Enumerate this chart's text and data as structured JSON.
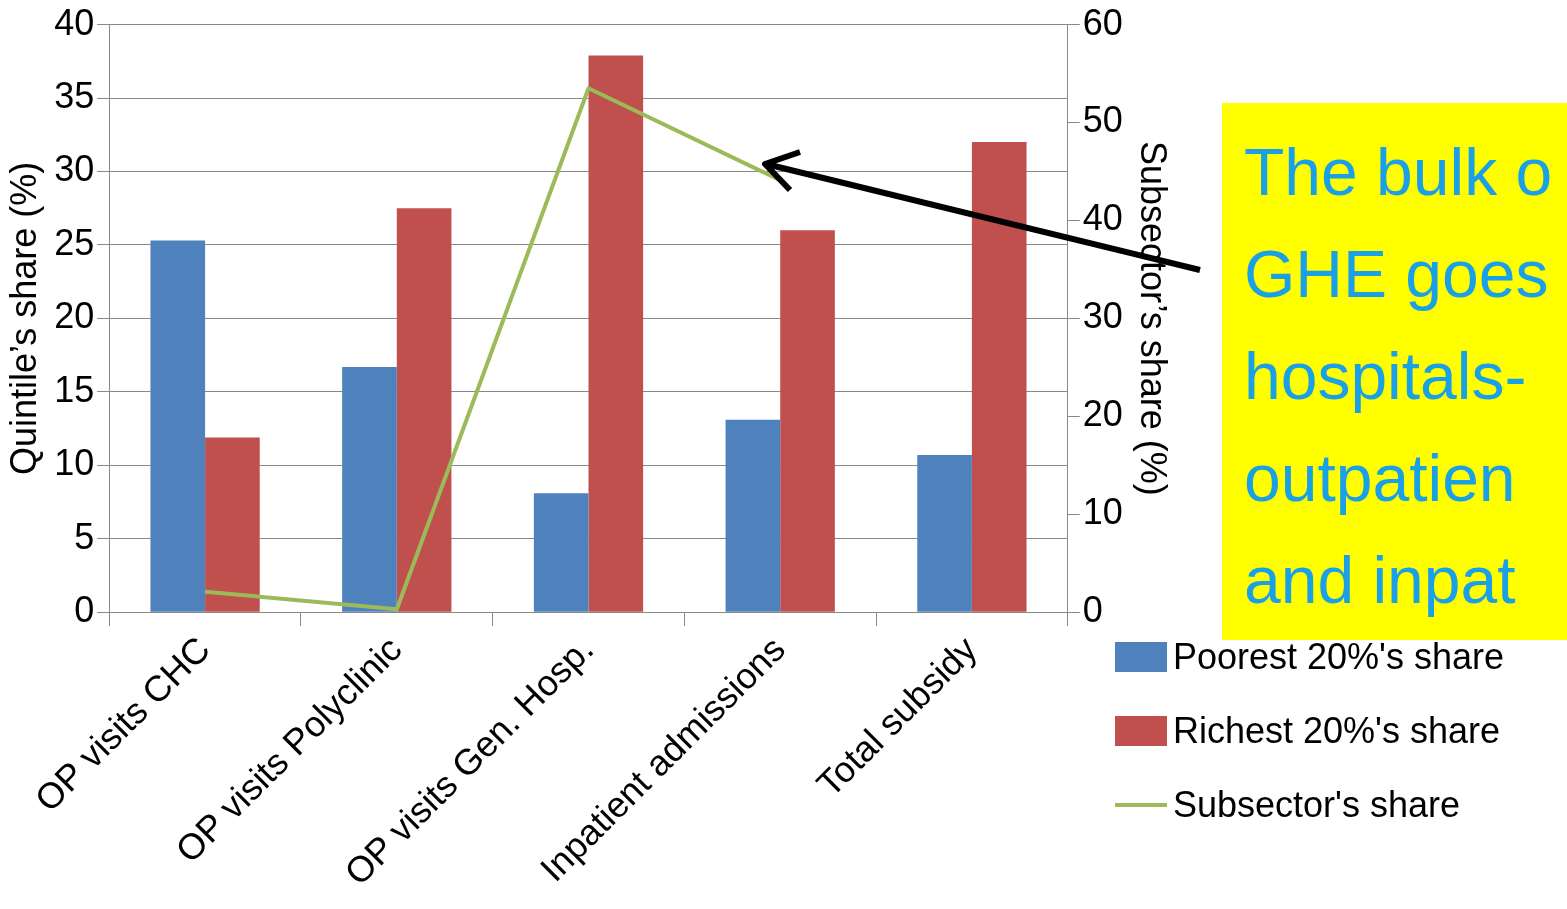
{
  "chart_data": {
    "type": "bar",
    "categories": [
      "OP visits CHC",
      "OP visits Polyclinic",
      "OP visits Gen. Hosp.",
      "Inpatient admissions",
      "Total subsidy"
    ],
    "series": [
      {
        "name": "Poorest 20%'s share",
        "color": "#4f81bd",
        "values": [
          25.3,
          16.7,
          8.1,
          13.1,
          10.7
        ]
      },
      {
        "name": "Richest 20%'s share",
        "color": "#c0504d",
        "values": [
          11.9,
          27.5,
          37.9,
          26.0,
          32.0
        ]
      },
      {
        "name": "Subsector's share",
        "type": "line",
        "axis": "y2",
        "color": "#9bbb59",
        "values": [
          2.1,
          0.3,
          53.5,
          44.1,
          null
        ]
      }
    ],
    "ylabel": "Quintile’s share (%)",
    "y2label": "Subsector’s share (%)",
    "ylim": [
      0,
      40
    ],
    "yticks": [
      0,
      5,
      10,
      15,
      20,
      25,
      30,
      35,
      40
    ],
    "y2lim": [
      0,
      60
    ],
    "y2ticks": [
      0,
      10,
      20,
      30,
      40,
      50,
      60
    ],
    "grid": "y",
    "legend": "bottom right",
    "marker": "none",
    "annotations": [
      "The bulk o\nGHE goes\nhospitals-\noutpatien\nand inpat"
    ]
  }
}
